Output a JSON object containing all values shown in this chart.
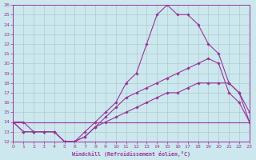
{
  "bg_color": "#cce8ee",
  "grid_color": "#aacccc",
  "line_color": "#993399",
  "xlabel": "Windchill (Refroidissement éolien,°C)",
  "xlim": [
    0,
    23
  ],
  "ylim": [
    12,
    26
  ],
  "xticks": [
    0,
    1,
    2,
    3,
    4,
    5,
    6,
    7,
    8,
    9,
    10,
    11,
    12,
    13,
    14,
    15,
    16,
    17,
    18,
    19,
    20,
    21,
    22,
    23
  ],
  "yticks": [
    12,
    13,
    14,
    15,
    16,
    17,
    18,
    19,
    20,
    21,
    22,
    23,
    24,
    25,
    26
  ],
  "line1_x": [
    0,
    1,
    2,
    3,
    4,
    5,
    6,
    7,
    8,
    9,
    10,
    11,
    12,
    13,
    14,
    15,
    16,
    17,
    18,
    19,
    20,
    21,
    22,
    23
  ],
  "line1_y": [
    14,
    14,
    13,
    13,
    13,
    12,
    12,
    13,
    14,
    15,
    16,
    18,
    19,
    22,
    25,
    26,
    25,
    25,
    24,
    22,
    21,
    18,
    17,
    15
  ],
  "line2_x": [
    0,
    1,
    2,
    3,
    4,
    5,
    6,
    7,
    8,
    9,
    10,
    11,
    12,
    13,
    14,
    15,
    16,
    17,
    18,
    19,
    20,
    21,
    22,
    23
  ],
  "line2_y": [
    14,
    13,
    13,
    13,
    13,
    12,
    12,
    12.5,
    13.5,
    14.5,
    15.5,
    16.5,
    17,
    17.5,
    18,
    18.5,
    19,
    19.5,
    20,
    20.5,
    20,
    17,
    16,
    14
  ],
  "line3_x": [
    0,
    1,
    2,
    3,
    4,
    5,
    6,
    7,
    8,
    9,
    10,
    11,
    12,
    13,
    14,
    15,
    16,
    17,
    18,
    19,
    20,
    21,
    22,
    23
  ],
  "line3_y": [
    14,
    13,
    13,
    13,
    13,
    12,
    12,
    12.5,
    13.5,
    14,
    14.5,
    15,
    15.5,
    16,
    16.5,
    17,
    17,
    17.5,
    18,
    18,
    18,
    18,
    17,
    14
  ],
  "line4_x": [
    0,
    23
  ],
  "line4_y": [
    14,
    14
  ]
}
